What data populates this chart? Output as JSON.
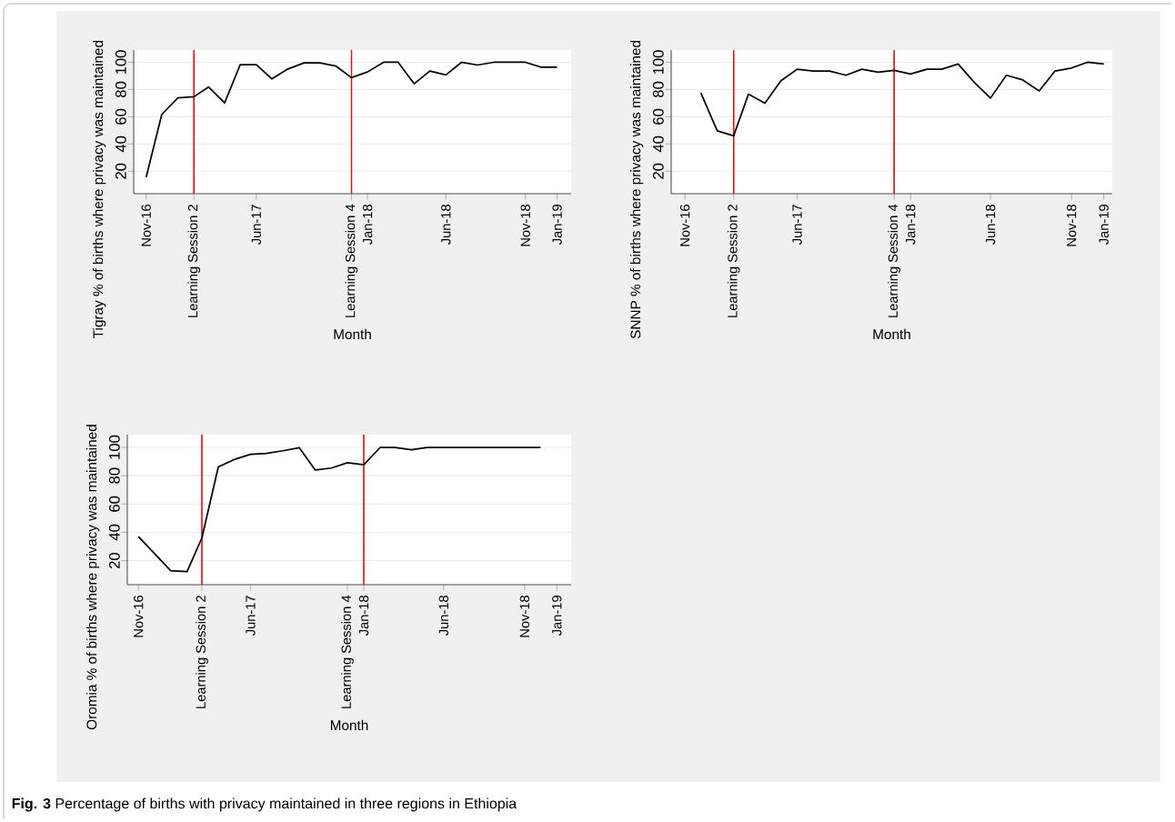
{
  "chart_data": [
    {
      "type": "line",
      "xlabel": "Month",
      "ylabel": "Tigray % of births where privacy was maintained",
      "series": [
        {
          "color": "#000000",
          "x": [
            "2016-11",
            "2016-12",
            "2017-01",
            "2017-02",
            "2017-03",
            "2017-04",
            "2017-05",
            "2017-06",
            "2017-07",
            "2017-08",
            "2017-09",
            "2017-10",
            "2017-11",
            "2017-12",
            "2018-01",
            "2018-02",
            "2018-03",
            "2018-04",
            "2018-05",
            "2018-06",
            "2018-07",
            "2018-08",
            "2018-09",
            "2018-10",
            "2018-11",
            "2018-12",
            "2019-01"
          ],
          "values": [
            15.6,
            61.6,
            73.8,
            74.7,
            81.8,
            70.2,
            98.2,
            98.2,
            87.8,
            95.1,
            99.6,
            99.6,
            97.3,
            88.7,
            92.9,
            100,
            100,
            84.2,
            93.6,
            90.7,
            100,
            98,
            100,
            100,
            100,
            96.4,
            96.4
          ]
        }
      ],
      "xlim": [
        "2016-10-08",
        "2019-01-28"
      ],
      "ylim": [
        3.5,
        109
      ],
      "xticks": [
        {
          "value": "2016-11",
          "label": "Nov-16"
        },
        {
          "value": "2017-02",
          "label": "Learning Session 2"
        },
        {
          "value": "2017-06",
          "label": "Jun-17"
        },
        {
          "value": "2017-12",
          "label": "Learning Session 4"
        },
        {
          "value": "2018-01",
          "label": "Jan-18"
        },
        {
          "value": "2018-06",
          "label": "Jun-18"
        },
        {
          "value": "2018-11",
          "label": "Nov-18"
        },
        {
          "value": "2019-01",
          "label": "Jan-19"
        }
      ],
      "yticks": [
        20,
        40,
        60,
        80,
        100
      ],
      "grid": "y",
      "ref_lines": [
        {
          "axis": "x",
          "value": "2017-02",
          "color": "#ff0000"
        },
        {
          "axis": "x",
          "value": "2017-12",
          "color": "#ff0000"
        }
      ]
    },
    {
      "type": "line",
      "xlabel": "Month",
      "ylabel": "SNNP % of births where privacy was maintained",
      "series": [
        {
          "color": "#000000",
          "x": [
            "2016-12",
            "2017-01",
            "2017-02",
            "2017-03",
            "2017-04",
            "2017-05",
            "2017-06",
            "2017-07",
            "2017-08",
            "2017-09",
            "2017-10",
            "2017-11",
            "2017-12",
            "2018-01",
            "2018-02",
            "2018-03",
            "2018-04",
            "2018-05",
            "2018-06",
            "2018-07",
            "2018-08",
            "2018-09",
            "2018-10",
            "2018-11",
            "2018-12",
            "2019-01"
          ],
          "values": [
            77.5,
            49.7,
            46,
            76.6,
            70,
            86.3,
            94.9,
            93.6,
            93.6,
            90.5,
            94.9,
            92.7,
            94,
            91.4,
            94.9,
            94.9,
            98.7,
            85.4,
            73.7,
            90.5,
            87,
            79,
            93.6,
            95.8,
            100,
            98.7
          ]
        }
      ],
      "xlim": [
        "2016-10-06",
        "2019-01-17"
      ],
      "ylim": [
        3.5,
        109
      ],
      "xticks": [
        {
          "value": "2016-11",
          "label": "Nov-16"
        },
        {
          "value": "2017-02",
          "label": "Learning Session 2"
        },
        {
          "value": "2017-06",
          "label": "Jun-17"
        },
        {
          "value": "2017-12",
          "label": "Learning Session 4"
        },
        {
          "value": "2018-01",
          "label": "Jan-18"
        },
        {
          "value": "2018-06",
          "label": "Jun-18"
        },
        {
          "value": "2018-11",
          "label": "Nov-18"
        },
        {
          "value": "2019-01",
          "label": "Jan-19"
        }
      ],
      "yticks": [
        20,
        40,
        60,
        80,
        100
      ],
      "grid": "y",
      "ref_lines": [
        {
          "axis": "x",
          "value": "2017-02",
          "color": "#ff0000"
        },
        {
          "axis": "x",
          "value": "2017-12",
          "color": "#ff0000"
        }
      ]
    },
    {
      "type": "line",
      "xlabel": "Month",
      "ylabel": "Oromia % of births where privacy was maintained",
      "series": [
        {
          "color": "#000000",
          "x": [
            "2016-11",
            "2017-01",
            "2017-02",
            "2017-03",
            "2017-04",
            "2017-05",
            "2017-06",
            "2017-07",
            "2017-08",
            "2017-09",
            "2017-10",
            "2017-11",
            "2017-12",
            "2018-01",
            "2018-02",
            "2018-03",
            "2018-04",
            "2018-05",
            "2018-06",
            "2018-07",
            "2018-08",
            "2018-09",
            "2018-10",
            "2018-11",
            "2018-12"
          ],
          "values": [
            37,
            12.9,
            12.3,
            36.1,
            86.2,
            91.4,
            95.1,
            95.7,
            97.6,
            99.8,
            84.1,
            85.4,
            89.2,
            87.7,
            100,
            100,
            98.3,
            100,
            100,
            100,
            100,
            100,
            100,
            100,
            100
          ]
        }
      ],
      "xlim": [
        "2016-10-11",
        "2019-01-28"
      ],
      "ylim": [
        3,
        109
      ],
      "xticks": [
        {
          "value": "2016-11",
          "label": "Nov-16"
        },
        {
          "value": "2017-03",
          "label": "Learning Session 2"
        },
        {
          "value": "2017-06",
          "label": "Jun-17"
        },
        {
          "value": "2017-12",
          "label": "Learning Session 4"
        },
        {
          "value": "2018-01",
          "label": "Jan-18"
        },
        {
          "value": "2018-06",
          "label": "Jun-18"
        },
        {
          "value": "2018-11",
          "label": "Nov-18"
        },
        {
          "value": "2019-01",
          "label": "Jan-19"
        }
      ],
      "yticks": [
        20,
        40,
        60,
        80,
        100
      ],
      "grid": "y",
      "ref_lines": [
        {
          "axis": "x",
          "value": "2017-03",
          "color": "#ff0000"
        },
        {
          "axis": "x",
          "value": "2018-01",
          "color": "#ff0000"
        }
      ],
      "annotations": [
        "**Fig. 3** Percentage of births with privacy maintained in three regions in Ethiopia"
      ]
    }
  ]
}
